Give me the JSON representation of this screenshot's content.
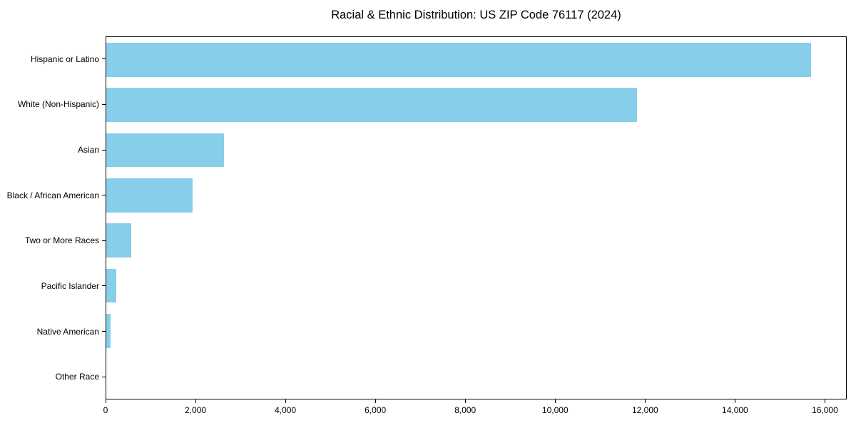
{
  "title": "Racial & Ethnic Distribution: US ZIP Code 76117 (2024)",
  "chart_data": {
    "type": "bar",
    "orientation": "horizontal",
    "title": "Racial & Ethnic Distribution: US ZIP Code 76117 (2024)",
    "categories": [
      "Hispanic or Latino",
      "White (Non-Hispanic)",
      "Asian",
      "Black / African American",
      "Two or More Races",
      "Pacific Islander",
      "Native American",
      "Other Race"
    ],
    "values": [
      15700,
      11830,
      2620,
      1920,
      555,
      225,
      95,
      0
    ],
    "xlabel": "",
    "ylabel": "",
    "xlim": [
      0,
      16485
    ],
    "x_ticks": [
      0,
      2000,
      4000,
      6000,
      8000,
      10000,
      12000,
      14000,
      16000
    ],
    "x_tick_labels": [
      "0",
      "2,000",
      "4,000",
      "6,000",
      "8,000",
      "10,000",
      "12,000",
      "14,000",
      "16,000"
    ],
    "bar_color": "#87CEEB",
    "axis_color": "#000000",
    "background_color": "#FFFFFF",
    "grid": false,
    "legend": null
  }
}
